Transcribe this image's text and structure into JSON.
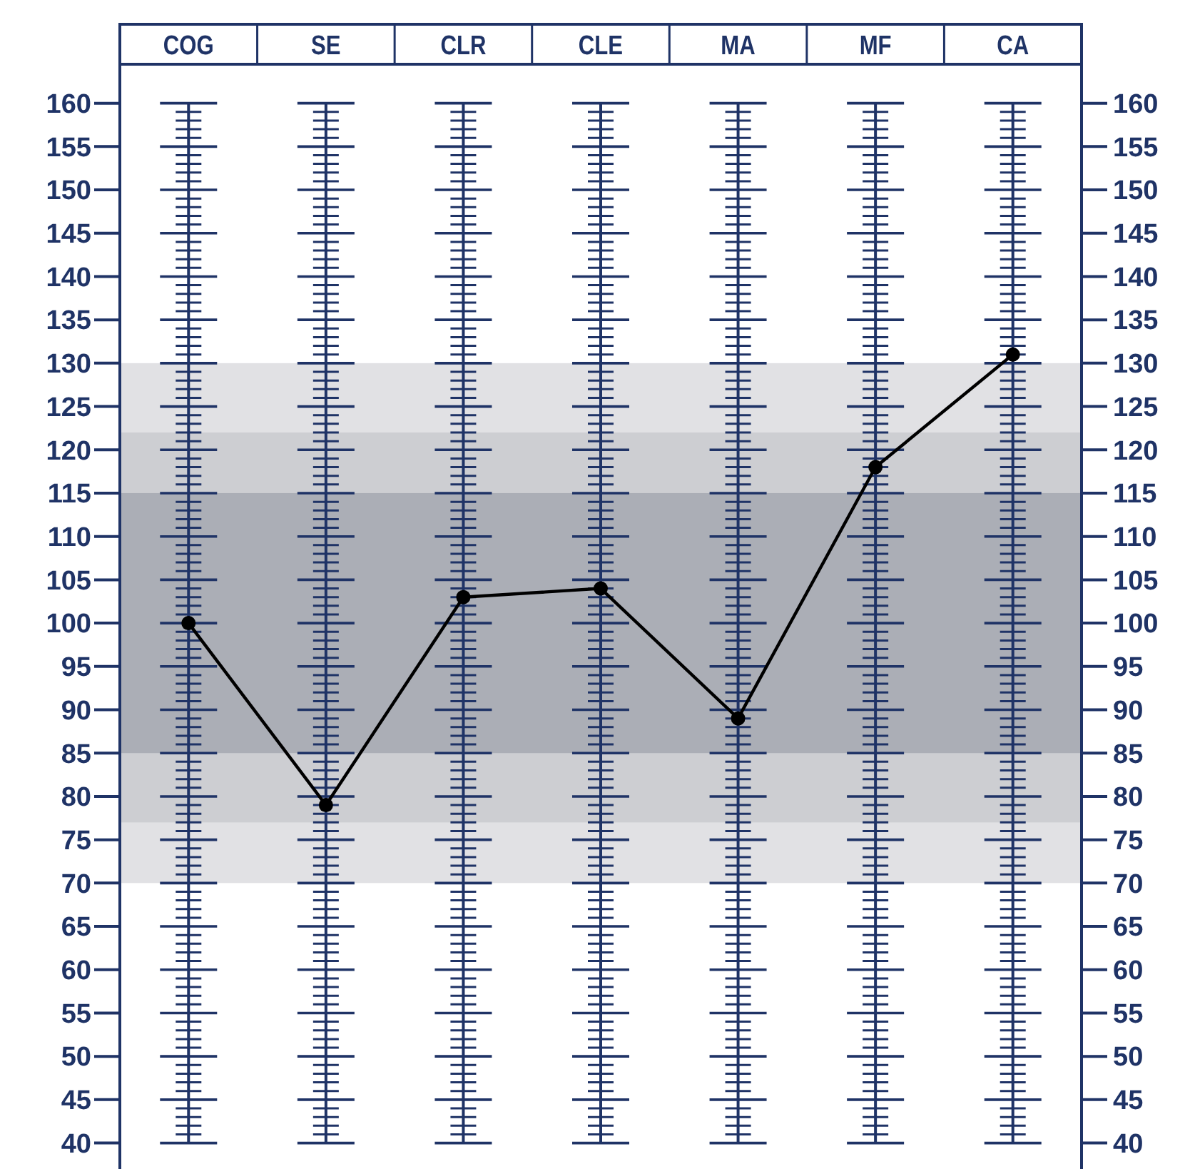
{
  "chart_data": {
    "type": "line",
    "categories": [
      "COG",
      "SE",
      "CLR",
      "CLE",
      "MA",
      "MF",
      "CA"
    ],
    "series": [
      {
        "color": "#000000",
        "values": [
          100,
          79,
          103,
          104,
          89,
          118,
          131
        ]
      }
    ],
    "marker": "circle",
    "ylim": [
      37,
      164.5
    ],
    "yticks": [
      40,
      45,
      50,
      55,
      60,
      65,
      70,
      75,
      80,
      85,
      90,
      95,
      100,
      105,
      110,
      115,
      120,
      125,
      130,
      135,
      140,
      145,
      150,
      155,
      160
    ],
    "y2lim": [
      37,
      164.5
    ],
    "y2ticks": [
      40,
      45,
      50,
      55,
      60,
      65,
      70,
      75,
      80,
      85,
      90,
      95,
      100,
      105,
      110,
      115,
      120,
      125,
      130,
      135,
      140,
      145,
      150,
      155,
      160
    ],
    "grid": "x",
    "bands": [
      {
        "axis": "y",
        "from": 70,
        "to": 130,
        "color": "#e1e1e4"
      },
      {
        "axis": "y",
        "from": 77,
        "to": 122,
        "color": "#cdced2"
      },
      {
        "axis": "y",
        "from": 85,
        "to": 115,
        "color": "#abaeb6"
      }
    ]
  }
}
